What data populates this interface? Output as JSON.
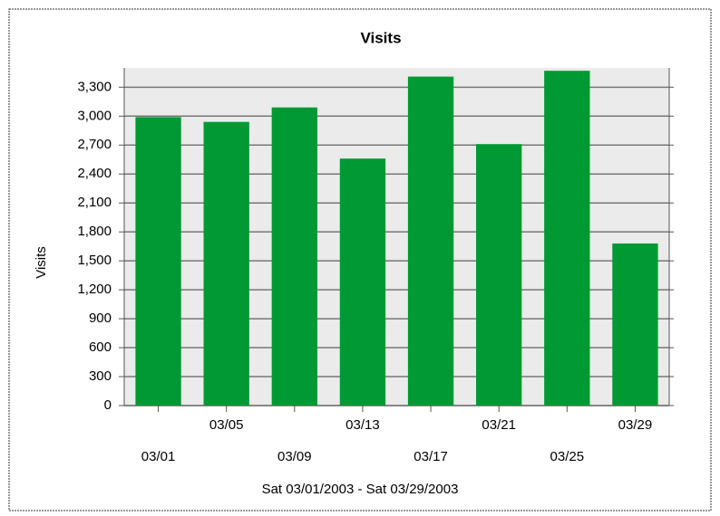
{
  "chart_data": {
    "type": "bar",
    "title": "Visits",
    "y_label": "Visits",
    "x_label": "Sat 03/01/2003 - Sat 03/29/2003",
    "categories": [
      "03/01",
      "03/05",
      "03/09",
      "03/13",
      "03/17",
      "03/21",
      "03/25",
      "03/29"
    ],
    "values": [
      2990,
      2940,
      3090,
      2560,
      3410,
      2710,
      3470,
      1680
    ],
    "color": "#009933",
    "ylim": [
      0,
      3500
    ],
    "yticks": [
      0,
      300,
      600,
      900,
      {
        "value": 1200,
        "label": "1,200"
      },
      {
        "value": 1500,
        "label": "1,500"
      },
      {
        "value": 1800,
        "label": "1,800"
      },
      {
        "value": 2100,
        "label": "2,100"
      },
      {
        "value": 2400,
        "label": "2,400"
      },
      {
        "value": 2700,
        "label": "2,700"
      },
      {
        "value": 3000,
        "label": "3,000"
      },
      {
        "value": 3300,
        "label": "3,300"
      }
    ],
    "grid": true
  }
}
